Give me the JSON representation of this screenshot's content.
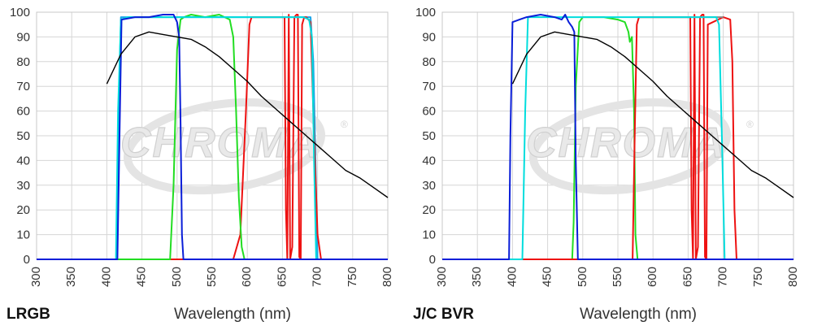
{
  "watermark": "CHROMA",
  "chart_data": [
    {
      "type": "line",
      "panel_label": "LRGB",
      "xlabel": "Wavelength (nm)",
      "ylabel": "",
      "xlim": [
        300,
        800
      ],
      "ylim": [
        0,
        100
      ],
      "xticks": [
        300,
        350,
        400,
        450,
        500,
        550,
        600,
        650,
        700,
        750,
        800
      ],
      "yticks": [
        0,
        10,
        20,
        30,
        40,
        50,
        60,
        70,
        80,
        90,
        100
      ],
      "grid": true,
      "series": [
        {
          "color": "#1aa3e8",
          "x": [
            300,
            414,
            417,
            420,
            450,
            500,
            550,
            600,
            650,
            690,
            694,
            697,
            700,
            800
          ],
          "y": [
            0,
            0,
            60,
            98,
            98,
            98,
            98,
            98,
            98,
            98,
            80,
            40,
            0,
            0
          ]
        },
        {
          "color": "#ee1111",
          "x": [
            300,
            580,
            590,
            598,
            603,
            606,
            650,
            653,
            655,
            657,
            659,
            661,
            664,
            667,
            670,
            672,
            674,
            676,
            678,
            681,
            684,
            690,
            695,
            700,
            705,
            800
          ],
          "y": [
            0,
            0,
            10,
            60,
            95,
            98,
            98,
            98,
            20,
            0,
            99,
            0,
            5,
            98,
            99,
            99,
            1,
            0,
            95,
            98,
            98,
            96,
            50,
            10,
            0,
            0
          ]
        },
        {
          "color": "#22dd22",
          "x": [
            300,
            490,
            495,
            500,
            505,
            510,
            520,
            540,
            560,
            575,
            580,
            584,
            588,
            592,
            596,
            800
          ],
          "y": [
            0,
            0,
            30,
            85,
            97,
            98,
            99,
            98,
            99,
            97,
            90,
            60,
            25,
            5,
            0,
            0
          ]
        },
        {
          "color": "#00dddd",
          "x": [
            300,
            413,
            416,
            420,
            430,
            450,
            500,
            550,
            600,
            650,
            680,
            688,
            692,
            695,
            698,
            800
          ],
          "y": [
            0,
            0,
            60,
            97,
            98,
            98,
            98,
            98,
            98,
            98,
            98,
            97,
            90,
            40,
            0,
            0
          ]
        },
        {
          "color": "#0a1ed8",
          "x": [
            300,
            415,
            418,
            421,
            440,
            460,
            480,
            495,
            500,
            503,
            505,
            507,
            509,
            800
          ],
          "y": [
            0,
            0,
            50,
            97,
            98,
            98,
            99,
            99,
            96,
            90,
            55,
            10,
            0,
            0
          ]
        },
        {
          "color": "#000000",
          "x": [
            400,
            420,
            440,
            460,
            480,
            500,
            520,
            540,
            560,
            580,
            600,
            620,
            640,
            660,
            680,
            700,
            720,
            740,
            760,
            780,
            800
          ],
          "y": [
            71,
            83,
            90,
            92,
            91,
            90,
            89,
            86,
            82,
            77,
            72,
            66,
            61,
            56,
            51,
            46,
            41,
            36,
            33,
            29,
            25
          ]
        }
      ]
    },
    {
      "type": "line",
      "panel_label": "J/C BVR",
      "xlabel": "Wavelength (nm)",
      "ylabel": "",
      "xlim": [
        300,
        800
      ],
      "ylim": [
        0,
        100
      ],
      "xticks": [
        300,
        350,
        400,
        450,
        500,
        550,
        600,
        650,
        700,
        750,
        800
      ],
      "yticks": [
        0,
        10,
        20,
        30,
        40,
        50,
        60,
        70,
        80,
        90,
        100
      ],
      "grid": true,
      "series": [
        {
          "color": "#22dd22",
          "x": [
            300,
            485,
            487,
            490,
            495,
            500,
            510,
            530,
            550,
            560,
            565,
            567,
            570,
            573,
            575,
            578,
            800
          ],
          "y": [
            0,
            0,
            15,
            70,
            96,
            98,
            98,
            98,
            97,
            96,
            92,
            88,
            90,
            60,
            10,
            0,
            0
          ]
        },
        {
          "color": "#ee1111",
          "x": [
            300,
            571,
            574,
            577,
            580,
            620,
            650,
            653,
            655,
            657,
            659,
            661,
            664,
            667,
            670,
            672,
            674,
            676,
            678,
            700,
            710,
            713,
            716,
            719,
            800
          ],
          "y": [
            0,
            0,
            50,
            95,
            98,
            98,
            98,
            98,
            20,
            0,
            99,
            0,
            5,
            98,
            99,
            99,
            1,
            0,
            95,
            98,
            97,
            80,
            20,
            0,
            0
          ]
        },
        {
          "color": "#888888",
          "x": [
            578,
            600,
            650,
            700
          ],
          "y": [
            98,
            98,
            98,
            98
          ]
        },
        {
          "color": "#00dddd",
          "x": [
            300,
            414,
            418,
            422,
            440,
            480,
            500,
            550,
            600,
            650,
            690,
            694,
            698,
            702,
            800
          ],
          "y": [
            0,
            0,
            60,
            98,
            98,
            98,
            98,
            98,
            98,
            98,
            98,
            95,
            50,
            0,
            0
          ]
        },
        {
          "color": "#0a1ed8",
          "x": [
            300,
            395,
            397,
            400,
            410,
            420,
            440,
            460,
            470,
            475,
            480,
            485,
            488,
            490,
            493,
            800
          ],
          "y": [
            0,
            0,
            50,
            96,
            97,
            98,
            99,
            98,
            97,
            99,
            96,
            94,
            92,
            40,
            0,
            0
          ]
        },
        {
          "color": "#000000",
          "x": [
            400,
            420,
            440,
            460,
            480,
            500,
            520,
            540,
            560,
            580,
            600,
            620,
            640,
            660,
            680,
            700,
            720,
            740,
            760,
            780,
            800
          ],
          "y": [
            71,
            83,
            90,
            92,
            91,
            90,
            89,
            86,
            82,
            77,
            72,
            66,
            61,
            56,
            51,
            46,
            41,
            36,
            33,
            29,
            25
          ]
        }
      ]
    }
  ]
}
